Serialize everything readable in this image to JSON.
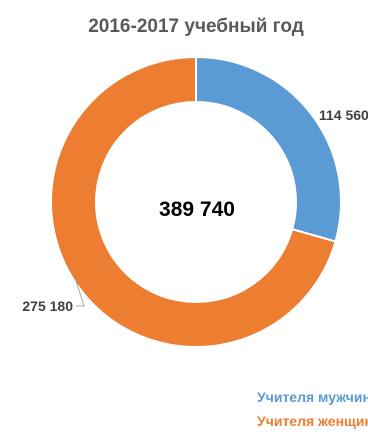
{
  "chart_data": {
    "type": "pie",
    "variant": "donut",
    "title": "2016-2017 учебный год",
    "center_label": "389 740",
    "slices": [
      {
        "name": "Учителя  мужчины",
        "value": 114560,
        "label": "114 560",
        "color": "#5B9BD5"
      },
      {
        "name": "Учителя женщины",
        "value": 275180,
        "label": "275 180",
        "color": "#ED7D31"
      }
    ],
    "legend_position": "bottom-right"
  }
}
